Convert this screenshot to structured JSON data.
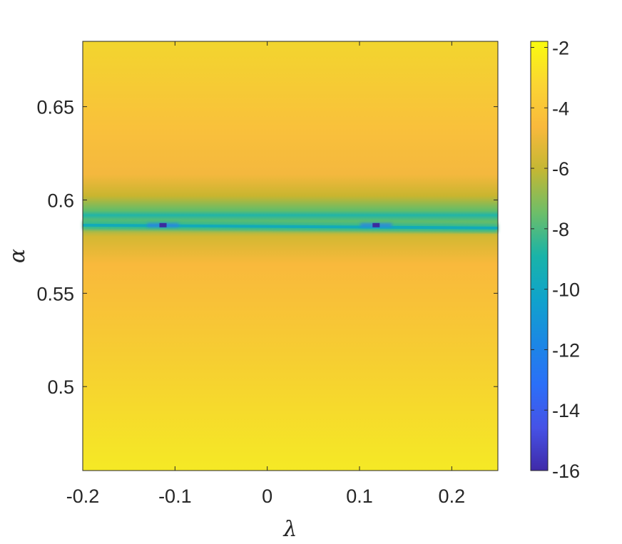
{
  "chart_data": {
    "type": "heatmap",
    "title": "",
    "xlabel": "λ",
    "ylabel": "α",
    "xlim": [
      -0.2,
      0.25
    ],
    "ylim": [
      0.455,
      0.685
    ],
    "x_ticks": [
      -0.2,
      -0.1,
      0,
      0.1,
      0.2
    ],
    "x_tick_labels": [
      "-0.2",
      "-0.1",
      "0",
      "0.1",
      "0.2"
    ],
    "y_ticks": [
      0.5,
      0.55,
      0.6,
      0.65
    ],
    "y_tick_labels": [
      "0.5",
      "0.55",
      "0.6",
      "0.65"
    ],
    "colormap": "parula",
    "colorbar": {
      "range": [
        -16,
        -1.8
      ],
      "ticks": [
        -2,
        -4,
        -6,
        -8,
        -10,
        -12,
        -14,
        -16
      ],
      "tick_labels": [
        "-2",
        "-4",
        "-6",
        "-8",
        "-10",
        "-12",
        "-14",
        "-16"
      ],
      "placement": "right"
    },
    "features": {
      "valley_line": {
        "alpha": 0.5865,
        "value": -8.5
      },
      "minima": [
        {
          "lambda": -0.113,
          "alpha": 0.5865,
          "value": -16
        },
        {
          "lambda": 0.118,
          "alpha": 0.5865,
          "value": -16
        }
      ]
    },
    "grid": false,
    "legend": "none"
  }
}
